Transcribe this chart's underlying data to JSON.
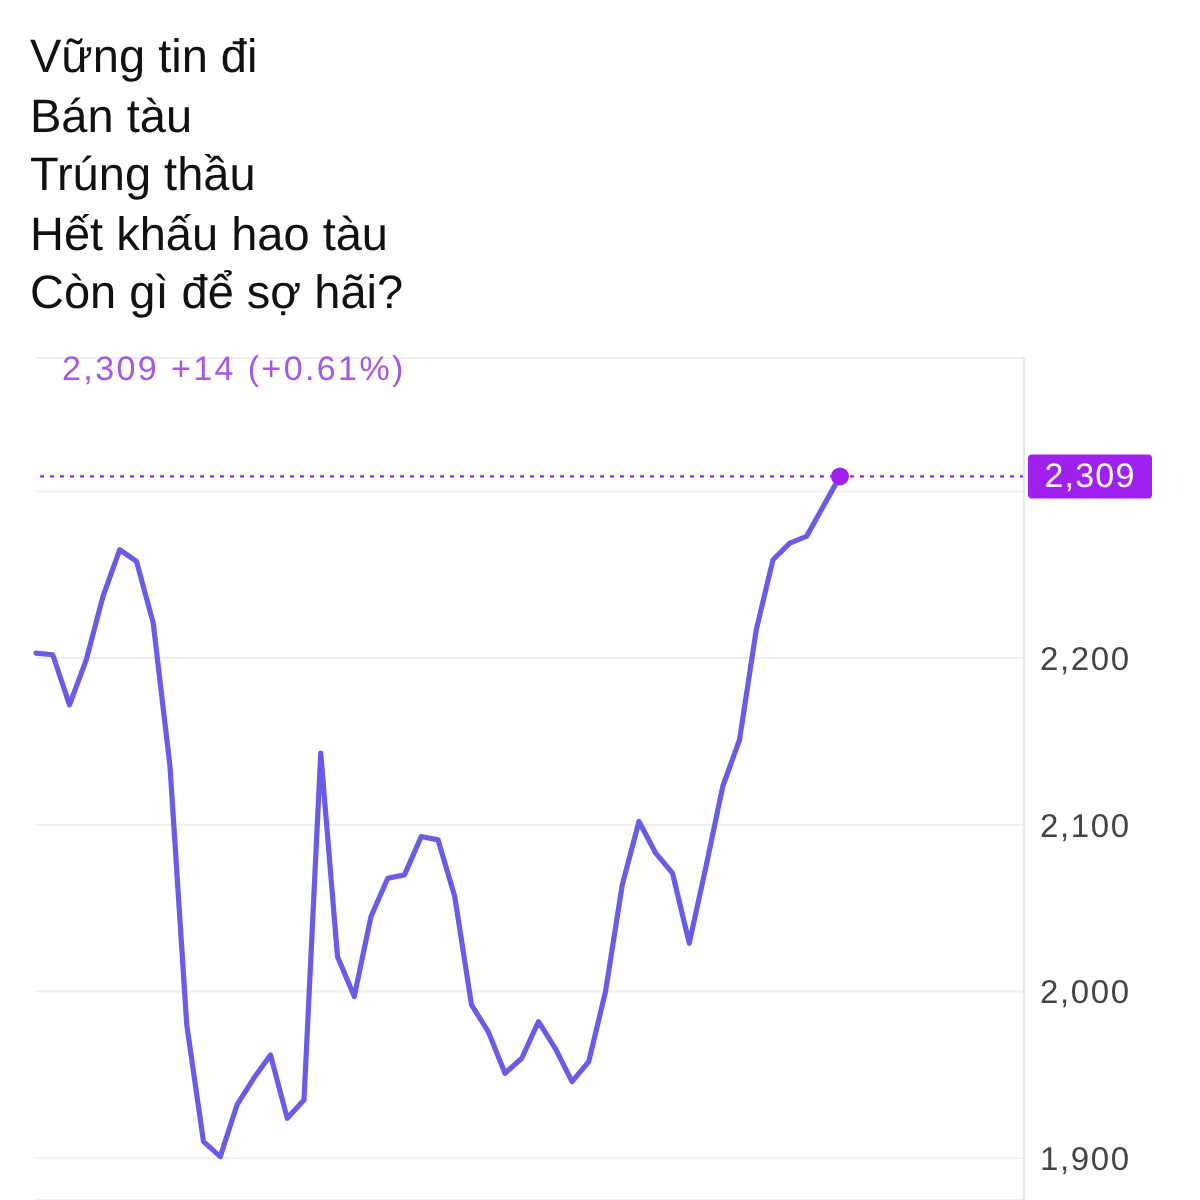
{
  "chart_data": {
    "type": "line",
    "title": "Vững tin đi\nBán tàu\nTrúng thầu\nHết khấu hao tàu\nCòn gì để sợ hãi?",
    "subtitle": "2,309 +14 (+0.61%)",
    "categories": [
      null,
      null,
      null,
      null,
      null,
      null,
      null,
      null,
      null,
      null,
      null,
      null,
      null,
      null,
      null,
      null,
      null,
      null,
      null,
      null,
      null,
      null,
      null,
      null,
      null,
      null,
      null,
      null,
      null,
      null,
      null,
      null,
      null,
      null,
      null,
      null,
      null,
      null,
      null,
      null,
      null,
      null,
      null,
      null,
      null,
      null,
      null,
      null,
      null
    ],
    "series": [
      {
        "color": "#6b5ce7",
        "marker": "none",
        "values": [
          2203,
          2202,
          2172,
          2199,
          2237,
          2265,
          2258,
          2221,
          2135,
          1980,
          1910,
          1901,
          1932,
          1948,
          1962,
          1924,
          1935,
          2143,
          2021,
          1997,
          2045,
          2068,
          2070,
          2093,
          2091,
          2057,
          1992,
          1976,
          1951,
          1960,
          1982,
          1966,
          1946,
          1958,
          2000,
          2064,
          2102,
          2083,
          2071,
          2029,
          2075,
          2123,
          2151,
          2217,
          2259,
          2269,
          2273,
          2291,
          2309
        ]
      },
      {
        "type": "scatter",
        "color": "#a020f0",
        "marker": "circle",
        "values": [
          null,
          null,
          null,
          null,
          null,
          null,
          null,
          null,
          null,
          null,
          null,
          null,
          null,
          null,
          null,
          null,
          null,
          null,
          null,
          null,
          null,
          null,
          null,
          null,
          null,
          null,
          null,
          null,
          null,
          null,
          null,
          null,
          null,
          null,
          null,
          null,
          null,
          null,
          null,
          null,
          null,
          null,
          null,
          null,
          null,
          null,
          null,
          null,
          2309
        ]
      }
    ],
    "ylim": [
      1875,
      2380
    ],
    "yticks": [
      {
        "value": 1900,
        "label": "1,900"
      },
      {
        "value": 2000,
        "label": "2,000"
      },
      {
        "value": 2100,
        "label": "2,100"
      },
      {
        "value": 2200,
        "label": "2,200"
      },
      {
        "value": 2300,
        "label": null
      }
    ],
    "grid": "y",
    "ref_lines": [
      {
        "axis": "y",
        "value": 2309,
        "label": "2,309",
        "color": "#a020f0",
        "line_style": "dotted"
      }
    ]
  }
}
